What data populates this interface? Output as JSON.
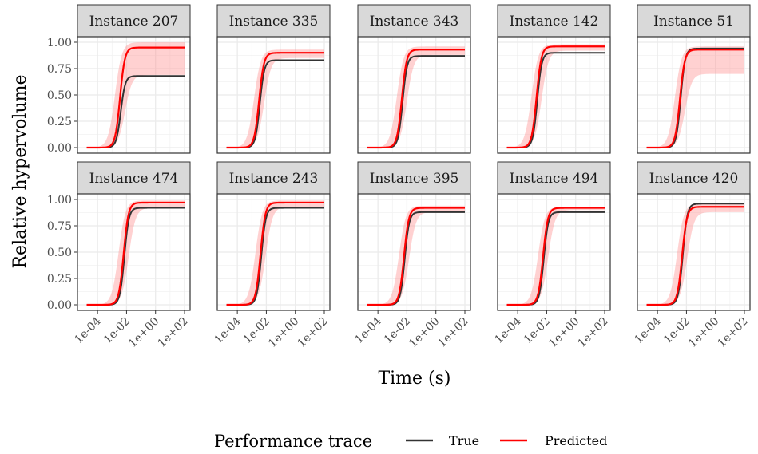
{
  "chart_data": {
    "type": "line",
    "ylabel": "Relative hypervolume",
    "xlabel": "Time (s)",
    "x_scale": "log10",
    "xlim": [
      "1e-05",
      "1e+02"
    ],
    "ylim": [
      0,
      1.0
    ],
    "x_ticks": [
      "1e-04",
      "1e-02",
      "1e+00",
      "1e+02"
    ],
    "y_ticks": [
      "0.00",
      "0.25",
      "0.50",
      "0.75",
      "1.00"
    ],
    "grid": true,
    "legend": {
      "title": "Performance trace",
      "position": "bottom",
      "entries": [
        {
          "label": "True",
          "color": "#333333"
        },
        {
          "label": "Predicted",
          "color": "#ff0000"
        }
      ]
    },
    "colors": {
      "true": "#333333",
      "predicted": "#ff0000",
      "band": "#ff9999"
    },
    "panels": [
      {
        "title": "Instance 207",
        "true_final": 0.68,
        "pred_final": 0.95,
        "band_low": 0.69,
        "band_high": 1.0,
        "mid": -2.45
      },
      {
        "title": "Instance 335",
        "true_final": 0.83,
        "pred_final": 0.9,
        "band_low": 0.85,
        "band_high": 0.93,
        "mid": -2.5
      },
      {
        "title": "Instance 343",
        "true_final": 0.87,
        "pred_final": 0.93,
        "band_low": 0.88,
        "band_high": 0.96,
        "mid": -2.35
      },
      {
        "title": "Instance 142",
        "true_final": 0.9,
        "pred_final": 0.96,
        "band_low": 0.92,
        "band_high": 0.98,
        "mid": -2.7
      },
      {
        "title": "Instance 51",
        "true_final": 0.94,
        "pred_final": 0.93,
        "band_low": 0.7,
        "band_high": 0.96,
        "mid": -2.45
      },
      {
        "title": "Instance 474",
        "true_final": 0.92,
        "pred_final": 0.97,
        "band_low": 0.92,
        "band_high": 0.99,
        "mid": -2.2
      },
      {
        "title": "Instance 243",
        "true_final": 0.92,
        "pred_final": 0.97,
        "band_low": 0.93,
        "band_high": 0.99,
        "mid": -2.4
      },
      {
        "title": "Instance 395",
        "true_final": 0.88,
        "pred_final": 0.92,
        "band_low": 0.88,
        "band_high": 0.94,
        "mid": -2.2
      },
      {
        "title": "Instance 494",
        "true_final": 0.88,
        "pred_final": 0.92,
        "band_low": 0.9,
        "band_high": 0.93,
        "mid": -2.25
      },
      {
        "title": "Instance 420",
        "true_final": 0.96,
        "pred_final": 0.93,
        "band_low": 0.88,
        "band_high": 0.96,
        "mid": -2.3
      }
    ]
  }
}
